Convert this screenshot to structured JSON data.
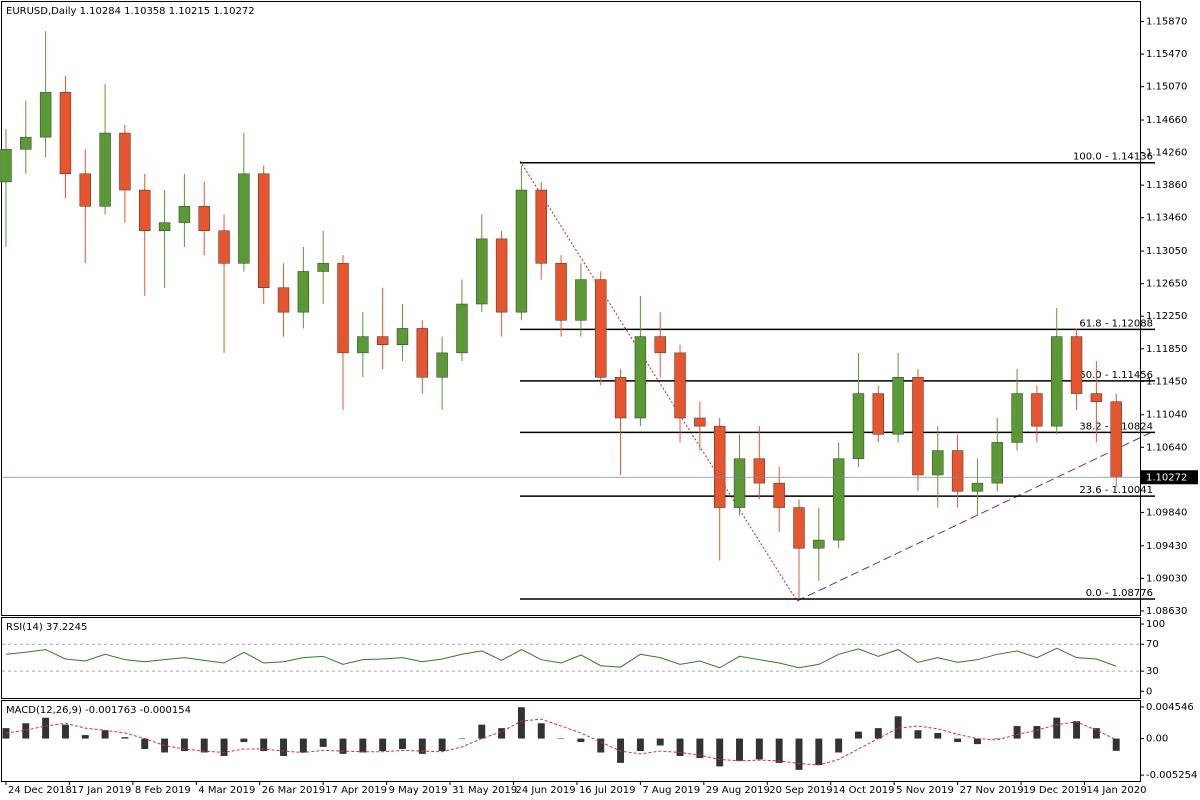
{
  "chart_data": [
    {
      "type": "candlestick",
      "title": "EURUSD,Daily",
      "header_ohlc": [
        1.10284,
        1.10358,
        1.10215,
        1.10272
      ],
      "up_color": "#5a9a32",
      "down_color": "#e8552d",
      "x": [
        0,
        5,
        10,
        15,
        20,
        25,
        30,
        35,
        40,
        45,
        50,
        55,
        60,
        65,
        70,
        75,
        80,
        85,
        90,
        95,
        100,
        105,
        110,
        115,
        120,
        125,
        130,
        135,
        140,
        145,
        150,
        155,
        160,
        165,
        170,
        175,
        180,
        185,
        190,
        195,
        200,
        205,
        210,
        215,
        220,
        225,
        230,
        235,
        240,
        245,
        250,
        255,
        260,
        265,
        270,
        275,
        280
      ],
      "candles": [
        [
          1.139,
          1.1455,
          1.131,
          1.143
        ],
        [
          1.143,
          1.149,
          1.14,
          1.1445
        ],
        [
          1.1445,
          1.1575,
          1.142,
          1.15
        ],
        [
          1.15,
          1.152,
          1.137,
          1.14
        ],
        [
          1.14,
          1.143,
          1.129,
          1.136
        ],
        [
          1.136,
          1.151,
          1.135,
          1.145
        ],
        [
          1.145,
          1.146,
          1.134,
          1.138
        ],
        [
          1.138,
          1.14,
          1.125,
          1.133
        ],
        [
          1.133,
          1.138,
          1.126,
          1.134
        ],
        [
          1.134,
          1.14,
          1.131,
          1.136
        ],
        [
          1.136,
          1.139,
          1.13,
          1.133
        ],
        [
          1.133,
          1.135,
          1.118,
          1.129
        ],
        [
          1.129,
          1.145,
          1.128,
          1.14
        ],
        [
          1.14,
          1.141,
          1.124,
          1.126
        ],
        [
          1.126,
          1.129,
          1.12,
          1.123
        ],
        [
          1.123,
          1.131,
          1.121,
          1.128
        ],
        [
          1.128,
          1.133,
          1.124,
          1.129
        ],
        [
          1.129,
          1.13,
          1.111,
          1.118
        ],
        [
          1.118,
          1.123,
          1.115,
          1.12
        ],
        [
          1.12,
          1.126,
          1.116,
          1.119
        ],
        [
          1.119,
          1.124,
          1.117,
          1.121
        ],
        [
          1.121,
          1.122,
          1.113,
          1.115
        ],
        [
          1.115,
          1.12,
          1.111,
          1.118
        ],
        [
          1.118,
          1.127,
          1.117,
          1.124
        ],
        [
          1.124,
          1.135,
          1.123,
          1.132
        ],
        [
          1.132,
          1.133,
          1.12,
          1.123
        ],
        [
          1.123,
          1.141,
          1.122,
          1.138
        ],
        [
          1.138,
          1.139,
          1.127,
          1.129
        ],
        [
          1.129,
          1.13,
          1.12,
          1.122
        ],
        [
          1.122,
          1.129,
          1.12,
          1.127
        ],
        [
          1.127,
          1.128,
          1.114,
          1.115
        ],
        [
          1.115,
          1.116,
          1.103,
          1.11
        ],
        [
          1.11,
          1.125,
          1.109,
          1.12
        ],
        [
          1.12,
          1.123,
          1.115,
          1.118
        ],
        [
          1.118,
          1.119,
          1.107,
          1.11
        ],
        [
          1.11,
          1.112,
          1.106,
          1.109
        ],
        [
          1.109,
          1.11,
          1.0925,
          1.099
        ],
        [
          1.099,
          1.108,
          1.098,
          1.105
        ],
        [
          1.105,
          1.109,
          1.1,
          1.102
        ],
        [
          1.102,
          1.104,
          1.096,
          1.099
        ],
        [
          1.099,
          1.1,
          1.08776,
          1.094
        ],
        [
          1.094,
          1.099,
          1.09,
          1.095
        ],
        [
          1.095,
          1.107,
          1.094,
          1.105
        ],
        [
          1.105,
          1.118,
          1.104,
          1.113
        ],
        [
          1.113,
          1.114,
          1.107,
          1.108
        ],
        [
          1.108,
          1.118,
          1.107,
          1.115
        ],
        [
          1.115,
          1.116,
          1.101,
          1.103
        ],
        [
          1.103,
          1.109,
          1.099,
          1.106
        ],
        [
          1.106,
          1.108,
          1.099,
          1.101
        ],
        [
          1.101,
          1.105,
          1.098,
          1.102
        ],
        [
          1.102,
          1.11,
          1.101,
          1.107
        ],
        [
          1.107,
          1.116,
          1.106,
          1.113
        ],
        [
          1.113,
          1.114,
          1.107,
          1.109
        ],
        [
          1.109,
          1.1235,
          1.108,
          1.12
        ],
        [
          1.12,
          1.121,
          1.111,
          1.113
        ],
        [
          1.113,
          1.117,
          1.107,
          1.112
        ],
        [
          1.112,
          1.113,
          1.1015,
          1.10272
        ]
      ],
      "xlim": [
        -1,
        286
      ],
      "ylim": [
        1.0858,
        1.1611
      ],
      "yticks": [
        {
          "value": 1.1587,
          "label": "1.15870"
        },
        {
          "value": 1.1547,
          "label": "1.15470"
        },
        {
          "value": 1.1507,
          "label": "1.15070"
        },
        {
          "value": 1.1466,
          "label": "1.14660"
        },
        {
          "value": 1.1426,
          "label": "1.14260"
        },
        {
          "value": 1.1386,
          "label": "1.13860"
        },
        {
          "value": 1.1346,
          "label": "1.13460"
        },
        {
          "value": 1.1305,
          "label": "1.13050"
        },
        {
          "value": 1.1265,
          "label": "1.12650"
        },
        {
          "value": 1.1225,
          "label": "1.12250"
        },
        {
          "value": 1.1185,
          "label": "1.11850"
        },
        {
          "value": 1.1145,
          "label": "1.11450"
        },
        {
          "value": 1.1104,
          "label": "1.11040"
        },
        {
          "value": 1.1064,
          "label": "1.10640"
        },
        {
          "value": 1.0984,
          "label": "1.09840"
        },
        {
          "value": 1.0943,
          "label": "1.09430"
        },
        {
          "value": 1.0903,
          "label": "1.09030"
        },
        {
          "value": 1.0863,
          "label": "1.08630"
        }
      ],
      "xticks": [
        {
          "value": 0,
          "label": "24 Dec 2018"
        },
        {
          "value": 16,
          "label": "17 Jan 2019"
        },
        {
          "value": 32,
          "label": "8 Feb 2019"
        },
        {
          "value": 48,
          "label": "4 Mar 2019"
        },
        {
          "value": 64,
          "label": "26 Mar 2019"
        },
        {
          "value": 80,
          "label": "17 Apr 2019"
        },
        {
          "value": 96,
          "label": "9 May 2019"
        },
        {
          "value": 112,
          "label": "31 May 2019"
        },
        {
          "value": 128,
          "label": "24 Jun 2019"
        },
        {
          "value": 144,
          "label": "16 Jul 2019"
        },
        {
          "value": 160,
          "label": "7 Aug 2019"
        },
        {
          "value": 176,
          "label": "29 Aug 2019"
        },
        {
          "value": 192,
          "label": "20 Sep 2019"
        },
        {
          "value": 208,
          "label": "14 Oct 2019"
        },
        {
          "value": 224,
          "label": "5 Nov 2019"
        },
        {
          "value": 240,
          "label": "27 Nov 2019"
        },
        {
          "value": 256,
          "label": "19 Dec 2019"
        },
        {
          "value": 272,
          "label": "14 Jan 2020"
        }
      ],
      "fib_levels": [
        {
          "value": 1.14136,
          "label": "100.0 - 1.14136"
        },
        {
          "value": 1.12088,
          "label": "61.8 - 1.12088"
        },
        {
          "value": 1.11456,
          "label": "50.0 - 1.11456"
        },
        {
          "value": 1.10824,
          "label": "38.2 - 1.10824"
        },
        {
          "value": 1.10041,
          "label": "23.6 - 1.10041"
        },
        {
          "value": 1.08776,
          "label": "0.0 - 1.08776"
        }
      ]
    },
    {
      "type": "line",
      "title": "RSI(14)",
      "color": "#2e7d1e",
      "values": [
        55,
        58,
        62,
        48,
        45,
        55,
        47,
        44,
        47,
        50,
        46,
        42,
        58,
        42,
        44,
        50,
        52,
        40,
        47,
        48,
        50,
        44,
        48,
        55,
        60,
        46,
        62,
        47,
        42,
        54,
        38,
        36,
        55,
        50,
        40,
        45,
        35,
        52,
        47,
        42,
        35,
        40,
        55,
        63,
        52,
        62,
        43,
        50,
        43,
        47,
        55,
        60,
        50,
        64,
        50,
        48,
        37.2245
      ],
      "ylim": [
        -10,
        109
      ],
      "yticks": [
        100,
        70,
        30,
        0
      ]
    },
    {
      "type": "macd",
      "title": "MACD(12,26,9)",
      "color": "#333333",
      "signal_color": "#e03030",
      "values": [
        0.0015,
        0.0022,
        0.003,
        0.002,
        0.0005,
        0.0012,
        0.0002,
        -0.0015,
        -0.002,
        -0.0018,
        -0.002,
        -0.0025,
        -0.0005,
        -0.0018,
        -0.0025,
        -0.002,
        -0.0012,
        -0.0022,
        -0.002,
        -0.0018,
        -0.0015,
        -0.0022,
        -0.0018,
        0.0,
        0.002,
        0.0015,
        0.0045,
        0.0022,
        0.0,
        -0.0005,
        -0.002,
        -0.0035,
        -0.0018,
        -0.001,
        -0.0025,
        -0.0028,
        -0.004,
        -0.0032,
        -0.003,
        -0.0035,
        -0.0045,
        -0.0038,
        -0.002,
        0.001,
        0.0015,
        0.0032,
        0.0012,
        0.0008,
        -0.0005,
        -0.0008,
        0.0,
        0.0018,
        0.0018,
        0.003,
        0.0025,
        0.0015,
        -0.001763
      ],
      "signal": [
        0.0008,
        0.0012,
        0.0018,
        0.0022,
        0.0015,
        0.0012,
        0.0008,
        0.0,
        -0.001,
        -0.0015,
        -0.0018,
        -0.002,
        -0.0015,
        -0.0015,
        -0.0018,
        -0.002,
        -0.0017,
        -0.0018,
        -0.0019,
        -0.0019,
        -0.0017,
        -0.0018,
        -0.0019,
        -0.0012,
        0.0,
        0.001,
        0.0025,
        0.0028,
        0.0018,
        0.0008,
        -0.0005,
        -0.0018,
        -0.0022,
        -0.0018,
        -0.002,
        -0.0024,
        -0.003,
        -0.0032,
        -0.0031,
        -0.0032,
        -0.0036,
        -0.0038,
        -0.003,
        -0.0015,
        0.0,
        0.0015,
        0.0018,
        0.0014,
        0.0006,
        0.0,
        -0.0002,
        0.0006,
        0.0012,
        0.002,
        0.0024,
        0.0012,
        -0.000154
      ],
      "ylim": [
        -0.0061,
        0.0054
      ],
      "yticks": [
        0.004546,
        {
          "value": 0,
          "label": "0.00"
        },
        -0.005254
      ]
    }
  ]
}
